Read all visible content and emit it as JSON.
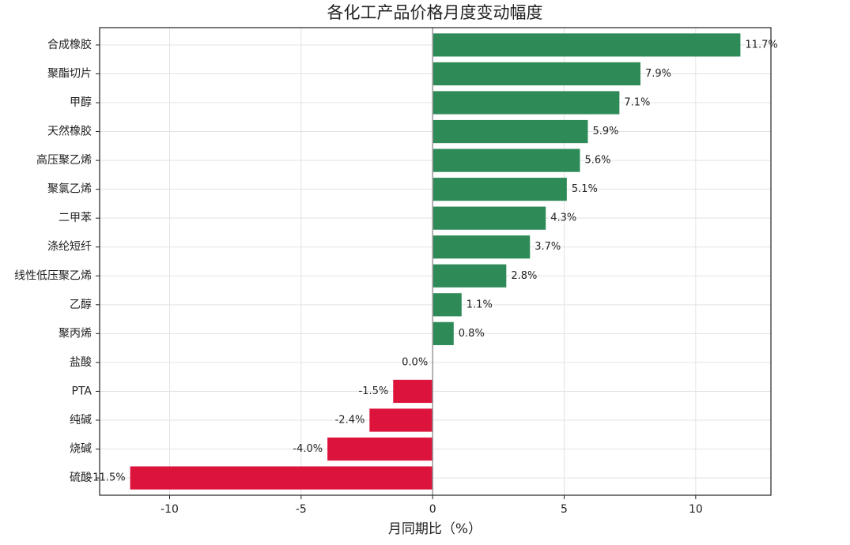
{
  "chart_data": {
    "type": "barh",
    "title": "各化工产品价格月度变动幅度",
    "x_label": "月同期比（%）",
    "categories": [
      "合成橡胶",
      "聚酯切片",
      "甲醇",
      "天然橡胶",
      "高压聚乙烯",
      "聚氯乙烯",
      "二甲苯",
      "涤纶短纤",
      "线性低压聚乙烯",
      "乙醇",
      "聚丙烯",
      "盐酸",
      "PTA",
      "纯碱",
      "烧碱",
      "硫酸"
    ],
    "values": [
      11.7,
      7.9,
      7.1,
      5.9,
      5.6,
      5.1,
      4.3,
      3.7,
      2.8,
      1.1,
      0.8,
      0.0,
      -1.5,
      -2.4,
      -4.0,
      -11.5
    ],
    "value_labels": [
      "11.7%",
      "7.9%",
      "7.1%",
      "5.9%",
      "5.6%",
      "5.1%",
      "4.3%",
      "3.7%",
      "2.8%",
      "1.1%",
      "0.8%",
      "0.0%",
      "-1.5%",
      "-2.4%",
      "-4.0%",
      "-11.5%"
    ],
    "positive_color": "#2e8b57",
    "negative_color": "#dc143c",
    "xlim": [
      -12.66,
      12.86
    ],
    "xticks": [
      -10,
      -5,
      0,
      5,
      10
    ],
    "grid": true
  }
}
